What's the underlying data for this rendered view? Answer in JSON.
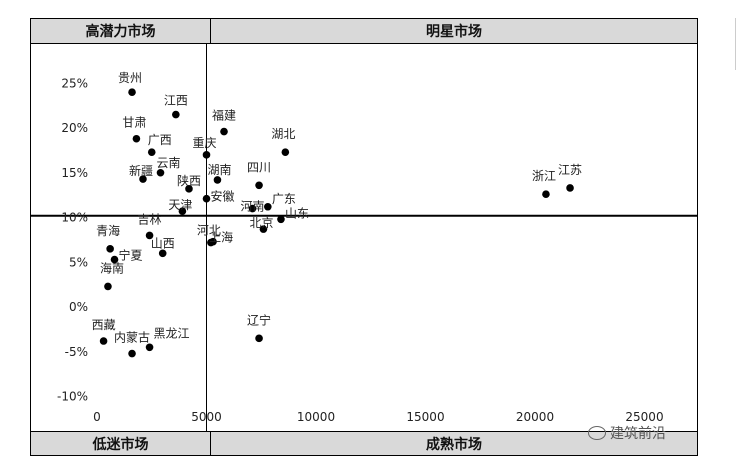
{
  "quadrants": {
    "top_left": "高潜力市场",
    "top_right": "明星市场",
    "bottom_left": "低迷市场",
    "bottom_right": "成熟市场"
  },
  "watermark": "建筑前沿",
  "chart_data": {
    "type": "scatter",
    "title": "",
    "xlabel": "",
    "ylabel": "",
    "xlim": [
      0,
      27000
    ],
    "ylim": [
      -10,
      27
    ],
    "x_ticks": [
      0,
      5000,
      10000,
      15000,
      20000,
      25000
    ],
    "y_ticks": [
      25,
      20,
      15,
      10,
      5,
      0,
      -5,
      -10
    ],
    "y_tick_labels": [
      "25%",
      "20%",
      "15%",
      "10%",
      "5%",
      "0%",
      "-5%",
      "-10%"
    ],
    "divider": {
      "x": 5000,
      "y": 10.2
    },
    "points": [
      {
        "label": "贵州",
        "x": 1600,
        "y": 24
      },
      {
        "label": "江西",
        "x": 3600,
        "y": 21.5
      },
      {
        "label": "福建",
        "x": 5800,
        "y": 19.6
      },
      {
        "label": "甘肃",
        "x": 1800,
        "y": 18.8
      },
      {
        "label": "广西",
        "x": 2500,
        "y": 17.3
      },
      {
        "label": "重庆",
        "x": 5000,
        "y": 17
      },
      {
        "label": "湖北",
        "x": 8600,
        "y": 17.3
      },
      {
        "label": "新疆",
        "x": 2100,
        "y": 14.3
      },
      {
        "label": "云南",
        "x": 2900,
        "y": 15
      },
      {
        "label": "湖南",
        "x": 5500,
        "y": 14.2
      },
      {
        "label": "四川",
        "x": 7400,
        "y": 13.6
      },
      {
        "label": "陕西",
        "x": 4200,
        "y": 13.2
      },
      {
        "label": "安徽",
        "x": 5000,
        "y": 12.1
      },
      {
        "label": "天津",
        "x": 3900,
        "y": 10.7
      },
      {
        "label": "河南",
        "x": 7100,
        "y": 11
      },
      {
        "label": "广东",
        "x": 7800,
        "y": 11.2
      },
      {
        "label": "浙江",
        "x": 20500,
        "y": 12.6
      },
      {
        "label": "江苏",
        "x": 21600,
        "y": 13.3
      },
      {
        "label": "吉林",
        "x": 2400,
        "y": 8
      },
      {
        "label": "山西",
        "x": 3000,
        "y": 6
      },
      {
        "label": "河北",
        "x": 5200,
        "y": 7.2
      },
      {
        "label": "上海",
        "x": 5300,
        "y": 7.3
      },
      {
        "label": "北京",
        "x": 7600,
        "y": 8.7
      },
      {
        "label": "山东",
        "x": 8400,
        "y": 9.8
      },
      {
        "label": "青海",
        "x": 600,
        "y": 6.5
      },
      {
        "label": "宁夏",
        "x": 800,
        "y": 5.3
      },
      {
        "label": "海南",
        "x": 500,
        "y": 2.3
      },
      {
        "label": "辽宁",
        "x": 7400,
        "y": -3.5
      },
      {
        "label": "西藏",
        "x": 300,
        "y": -3.8
      },
      {
        "label": "黑龙江",
        "x": 2400,
        "y": -4.5
      },
      {
        "label": "内蒙古",
        "x": 1600,
        "y": -5.2
      }
    ]
  }
}
